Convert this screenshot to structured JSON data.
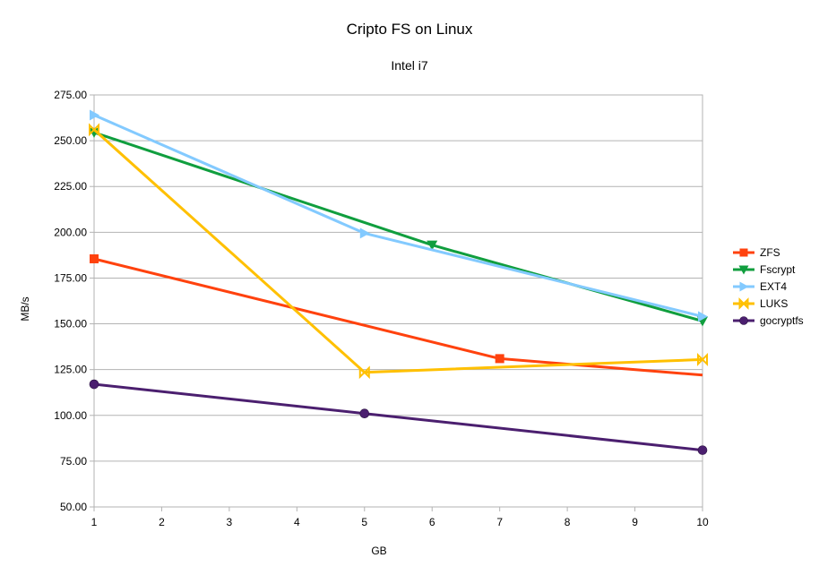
{
  "chart_data": {
    "type": "line",
    "title": "Cripto FS on Linux",
    "subtitle": "Intel i7",
    "xlabel": "GB",
    "ylabel": "MB/s",
    "xlim": [
      1,
      10
    ],
    "ylim": [
      50,
      275
    ],
    "x_ticks": [
      1,
      2,
      3,
      4,
      5,
      6,
      7,
      8,
      9,
      10
    ],
    "y_ticks": [
      "50.00",
      "75.00",
      "100.00",
      "125.00",
      "150.00",
      "175.00",
      "200.00",
      "225.00",
      "250.00",
      "275.00"
    ],
    "grid": "horizontal",
    "legend_position": "right",
    "series": [
      {
        "name": "ZFS",
        "color": "#ff420e",
        "marker": "square",
        "x": [
          1,
          7,
          10
        ],
        "y": [
          185.5,
          131,
          122
        ],
        "marker_at": [
          1,
          7
        ]
      },
      {
        "name": "Fscrypt",
        "color": "#109e3e",
        "marker": "triangle-down",
        "x": [
          1,
          6,
          10
        ],
        "y": [
          254.5,
          193,
          151.5
        ],
        "marker_at": [
          1,
          6,
          10
        ]
      },
      {
        "name": "EXT4",
        "color": "#83caff",
        "marker": "triangle-right",
        "x": [
          1,
          5,
          10
        ],
        "y": [
          264,
          199.5,
          154
        ],
        "marker_at": [
          1,
          5,
          10
        ]
      },
      {
        "name": "LUKS",
        "color": "#ffc000",
        "marker": "bowtie",
        "x": [
          1,
          5,
          10
        ],
        "y": [
          256,
          123.5,
          130.5
        ],
        "marker_at": [
          1,
          5,
          10
        ]
      },
      {
        "name": "gocryptfs",
        "color": "#4b1f6f",
        "marker": "circle",
        "x": [
          1,
          5,
          10
        ],
        "y": [
          117,
          101,
          81
        ],
        "marker_at": [
          1,
          5,
          10
        ]
      }
    ]
  }
}
